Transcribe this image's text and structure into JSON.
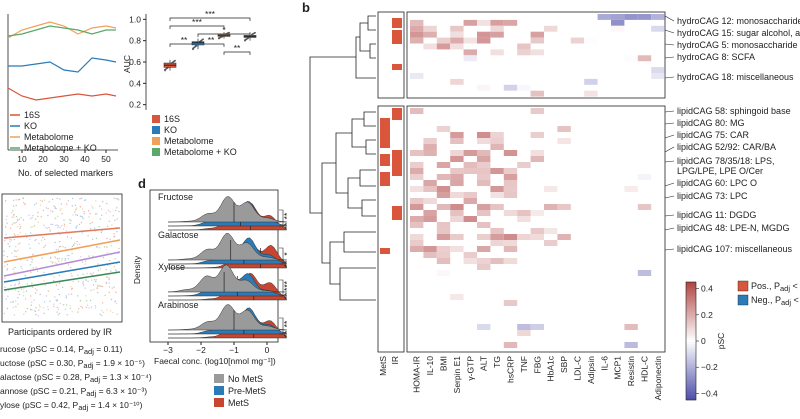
{
  "panels": {
    "b_label": "b",
    "d_label": "d"
  },
  "panel_a_lines": {
    "xlabel": "No. of selected markers",
    "xticks": [
      "10",
      "20",
      "30",
      "40",
      "50"
    ],
    "legend": [
      "16S",
      "KO",
      "Metabolome",
      "Metabolome + KO"
    ],
    "colors": [
      "#d9563c",
      "#2a7bb8",
      "#f0a05a",
      "#5aa86a"
    ]
  },
  "chart_data": [
    {
      "type": "box",
      "ylabel": "AUC",
      "yticks": [
        "0.2",
        "0.4",
        "0.6",
        "0.8",
        "1.0"
      ],
      "ylim": [
        0.15,
        1.05
      ],
      "categories": [
        "16S",
        "KO",
        "Metabolome",
        "Metabolome + KO"
      ],
      "medians": [
        0.57,
        0.78,
        0.85,
        0.84
      ],
      "q1": [
        0.55,
        0.76,
        0.84,
        0.83
      ],
      "q3": [
        0.59,
        0.79,
        0.86,
        0.85
      ],
      "whisker_low": [
        0.52,
        0.72,
        0.82,
        0.8
      ],
      "whisker_high": [
        0.62,
        0.82,
        0.88,
        0.88
      ],
      "colors": [
        "#d9563c",
        "#2a7bb8",
        "#f0a05a",
        "#5aa86a"
      ],
      "significance": [
        "***",
        "***",
        "*",
        "**",
        "**",
        "**"
      ],
      "legend": [
        "16S",
        "KO",
        "Metabolome",
        "Metabolome + KO"
      ]
    },
    {
      "type": "ridgeline",
      "xlabel": "Faecal conc. (log10[nmol mg⁻¹])",
      "ylabel": "Density",
      "xticks": [
        "−3",
        "−2",
        "−1",
        "0"
      ],
      "sugars": [
        "Fructose",
        "Galactose",
        "Xylose",
        "Arabinose"
      ],
      "groups": [
        "No MetS",
        "Pre-MetS",
        "MetS"
      ],
      "group_colors": [
        "#9a9a9a",
        "#2a7bb8",
        "#c8452f"
      ],
      "significance": [
        [
          "**",
          "**"
        ],
        [
          "*",
          "**"
        ],
        [
          "***",
          "**"
        ],
        [
          "**",
          "**"
        ]
      ]
    },
    {
      "type": "heatmap",
      "rows": [
        "hydroCAG 12: monosaccharide",
        "hydroCAG 15: sugar alcohol, ami",
        "hydroCAG 5: monosaccharide",
        "hydroCAG 8: SCFA",
        "hydroCAG 18: miscellaneous",
        "lipidCAG 58: sphingoid base",
        "lipidCAG 80: MG",
        "lipidCAG 75: CAR",
        "lipidCAG 52/92: CAR/BA",
        "lipidCAG 78/35/18: LPS,",
        "LPG/LPE, LPE O/Cer",
        "lipidCAG 60: LPC O",
        "lipidCAG 73: LPC",
        "lipidCAG 11: DGDG",
        "lipidCAG 48: LPE-N, MGDG",
        "lipidCAG 107: miscellaneous"
      ],
      "side_columns": [
        "MetS",
        "IR"
      ],
      "columns": [
        "HOMA-IR",
        "IL-10",
        "BMI",
        "Serpin E1",
        "γ-GTP",
        "ALT",
        "TG",
        "hsCRP",
        "TNF",
        "FBG",
        "HbA1c",
        "SBP",
        "LDL-C",
        "Adipsin",
        "IL-6",
        "MCP1",
        "Resistin",
        "HDL-C",
        "Adiponectin"
      ],
      "colorbar_label": "pSC",
      "colorbar_ticks": [
        "0.4",
        "0.2",
        "0",
        "−0.2",
        "−0.4"
      ],
      "colorbar_range": [
        -0.45,
        0.45
      ]
    }
  ],
  "legend_b": {
    "pos_label": "Pos., P",
    "pos_sub": "adj",
    "pos_tail": " < 0",
    "neg_label": "Neg., P",
    "neg_sub": "adj",
    "neg_tail": " < 0",
    "pos_color": "#d9563c",
    "neg_color": "#2a7bb8"
  },
  "panel_c": {
    "xlabel": "Participants ordered by IR",
    "stats": [
      "rucose (pSC = 0.14, P",
      "uctose (pSC = 0.30, P",
      "alactose (pSC = 0.28, P",
      "annose (pSC = 0.21, P",
      "ylose (pSC = 0.42, P"
    ],
    "stats_sub": [
      "adj",
      "adj",
      "adj",
      "adj",
      "adj"
    ],
    "stats_tail": [
      " = 0.11)",
      " = 1.9 × 10⁻⁵)",
      " = 1.3 × 10⁻⁴)",
      " = 6.3 × 10⁻³)",
      " = 1.4 × 10⁻¹⁰)"
    ]
  }
}
